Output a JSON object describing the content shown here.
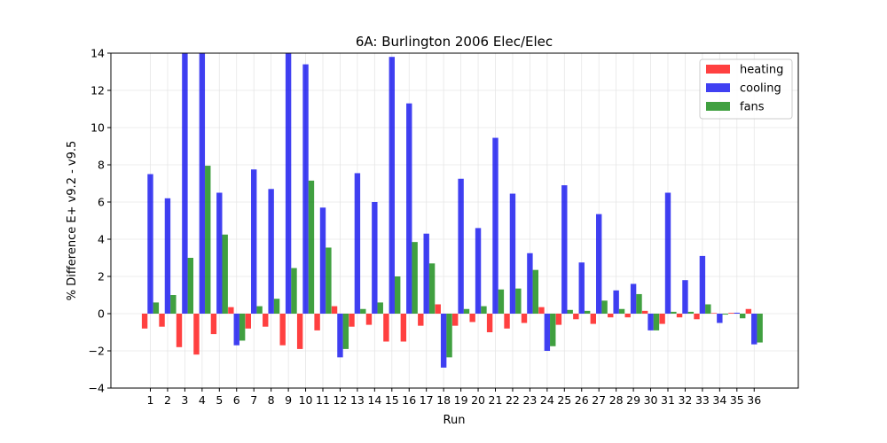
{
  "chart_data": {
    "type": "bar",
    "title": "6A: Burlington 2006 Elec/Elec",
    "xlabel": "Run",
    "ylabel": "% Difference E+ v9.2 - v9.5",
    "ylim": [
      -4,
      14
    ],
    "yticks": [
      -4,
      -2,
      0,
      2,
      4,
      6,
      8,
      10,
      12,
      14
    ],
    "grid": true,
    "legend_position": "top-right",
    "categories": [
      "1",
      "2",
      "3",
      "4",
      "5",
      "6",
      "7",
      "8",
      "9",
      "10",
      "11",
      "12",
      "13",
      "14",
      "15",
      "16",
      "17",
      "18",
      "19",
      "20",
      "21",
      "22",
      "23",
      "24",
      "25",
      "26",
      "27",
      "28",
      "29",
      "30",
      "31",
      "32",
      "33",
      "34",
      "35",
      "36"
    ],
    "series": [
      {
        "name": "heating",
        "color": "#ff0000",
        "values": [
          -0.8,
          -0.7,
          -1.8,
          -2.2,
          -1.1,
          0.35,
          -0.8,
          -0.7,
          -1.7,
          -1.9,
          -0.9,
          0.4,
          -0.7,
          -0.6,
          -1.5,
          -1.5,
          -0.65,
          0.5,
          -0.65,
          -0.45,
          -1.0,
          -0.8,
          -0.5,
          0.35,
          -0.6,
          -0.3,
          -0.55,
          -0.2,
          -0.2,
          0.15,
          -0.55,
          -0.2,
          -0.3,
          0.03,
          0.04,
          0.25
        ]
      },
      {
        "name": "cooling",
        "color": "#0000ee",
        "values": [
          7.5,
          6.2,
          14.0,
          14.0,
          6.5,
          -1.7,
          7.75,
          6.7,
          14.0,
          13.4,
          5.7,
          -2.35,
          7.55,
          6.0,
          13.8,
          11.3,
          4.3,
          -2.9,
          7.25,
          4.6,
          9.45,
          6.45,
          3.25,
          -2.0,
          6.9,
          2.75,
          5.35,
          1.25,
          1.6,
          -0.9,
          6.5,
          1.8,
          3.1,
          -0.5,
          0.05,
          -1.65
        ]
      },
      {
        "name": "fans",
        "color": "#008000",
        "values": [
          0.6,
          1.0,
          3.0,
          7.95,
          4.25,
          -1.45,
          0.4,
          0.8,
          2.45,
          7.15,
          3.55,
          -1.9,
          0.25,
          0.6,
          2.0,
          3.85,
          2.7,
          -2.35,
          0.25,
          0.4,
          1.3,
          1.35,
          2.35,
          -1.75,
          0.2,
          0.15,
          0.7,
          0.25,
          1.05,
          -0.9,
          0.1,
          0.1,
          0.5,
          -0.05,
          -0.25,
          -1.55
        ]
      }
    ]
  }
}
